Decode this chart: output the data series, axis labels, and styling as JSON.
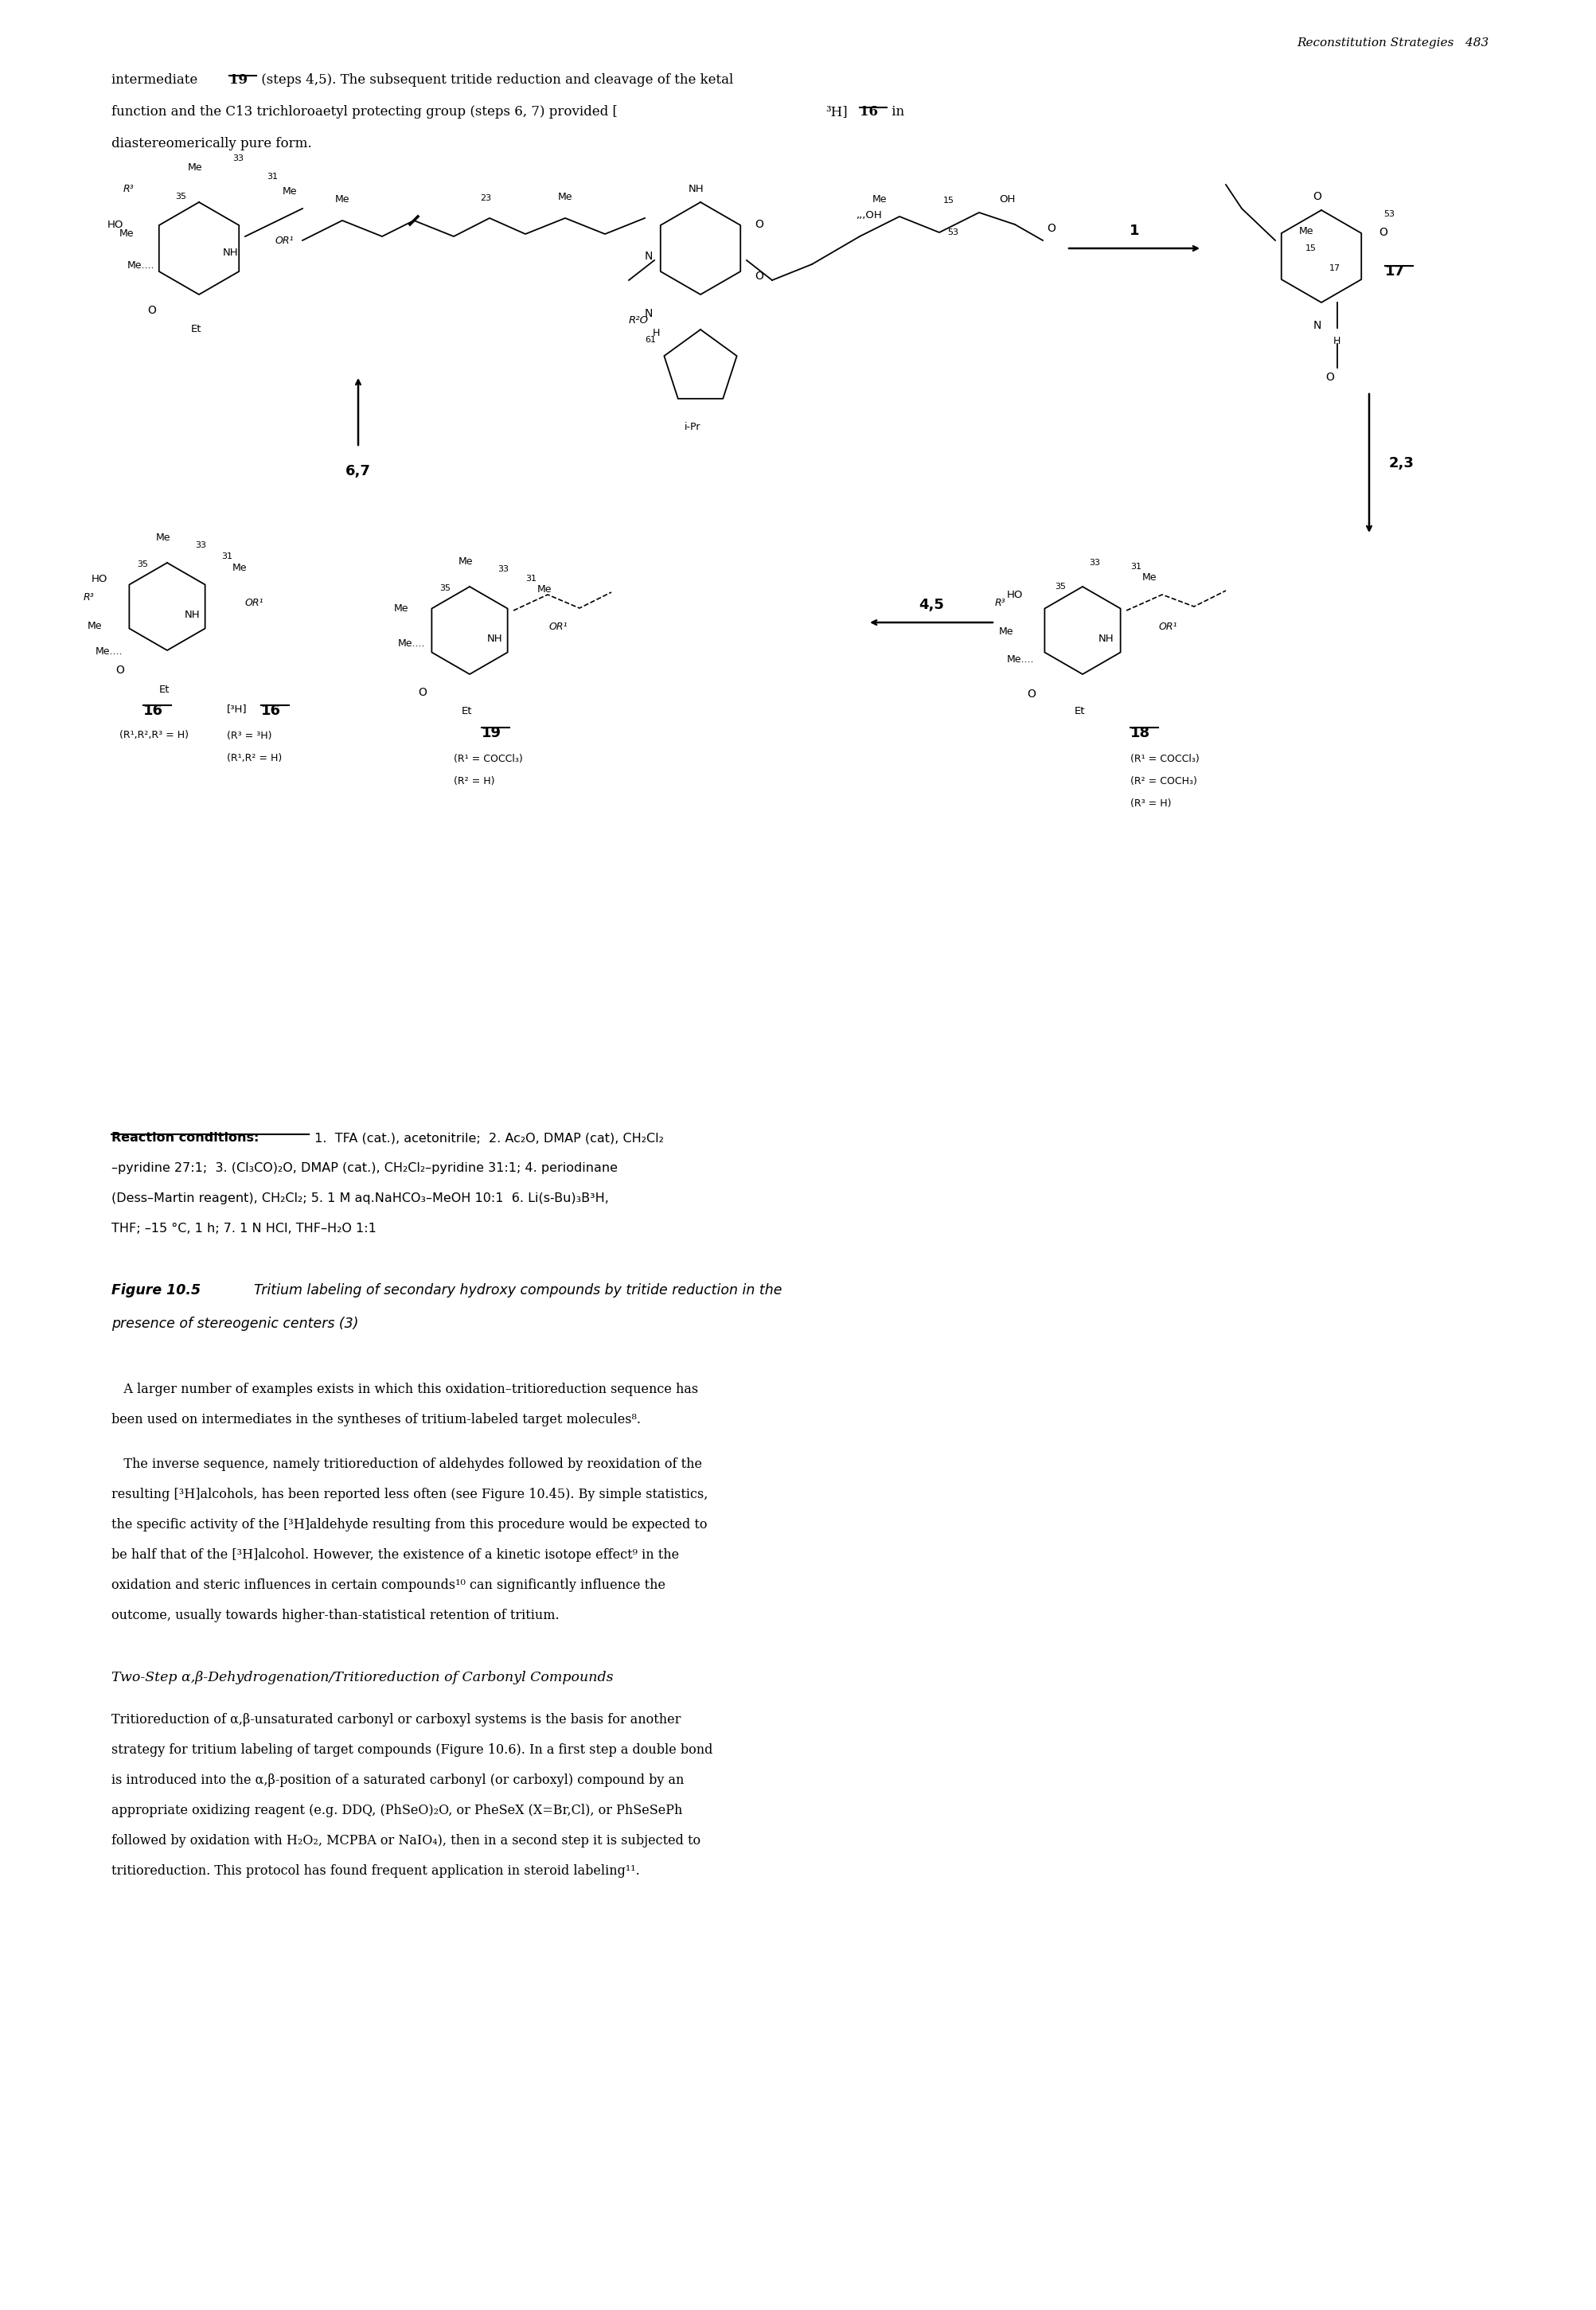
{
  "page_header": "Reconstitution Strategies   483",
  "intro_line1": "intermediate ",
  "intro_19": "19",
  "intro_line1b": " (steps 4,5). The subsequent tritide reduction and cleavage of the ketal",
  "intro_line2a": "function and the C13 trichloroaetyl protecting group (steps 6, 7) provided [",
  "intro_3H": "³H]",
  "intro_16": "16",
  "intro_line2b": " in",
  "intro_line3": "diastereomerically pure form.",
  "rc_bold": "Reaction conditions:",
  "rc_rest_line1": " 1.  TFA (cat.), acetonitrile;  2. Ac₂O, DMAP (cat), CH₂Cl₂",
  "rc_line2": "–pyridine 27:1;  3. (Cl₃CO)₂O, DMAP (cat.), CH₂Cl₂–pyridine 31:1; 4. periodinane",
  "rc_line3": "(Dess–Martin reagent), CH₂Cl₂; 5. 1 M aq.NaHCO₃–MeOH 10:1  6. Li(s-Bu)₃B³H,",
  "rc_line4": "THF; –15 °C, 1 h; 7. 1 N HCl, THF–H₂O 1:1",
  "fig_bold": "Figure 10.5",
  "fig_italic_line1": "  Tritium labeling of secondary hydroxy compounds by tritide reduction in the",
  "fig_italic_line2": "presence of stereogenic centers (3)",
  "body1_line1": "   A larger number of examples exists in which this oxidation–tritioreduction sequence has",
  "body1_line2": "been used on intermediates in the syntheses of tritium-labeled target molecules⁸.",
  "body2_line1": "   The inverse sequence, namely tritioreduction of aldehydes followed by reoxidation of the",
  "body2_line2": "resulting [³H]alcohols, has been reported less often (see Figure 10.45). By simple statistics,",
  "body2_line3": "the specific activity of the [³H]aldehyde resulting from this procedure would be expected to",
  "body2_line4": "be half that of the [³H]alcohol. However, the existence of a kinetic isotope effect⁹ in the",
  "body2_line5": "oxidation and steric influences in certain compounds¹⁰ can significantly influence the",
  "body2_line6": "outcome, usually towards higher-than-statistical retention of tritium.",
  "section_head": "Two-Step α,β-Dehydrogenation/Tritioreduction of Carbonyl Compounds",
  "body3_line1": "Tritioreduction of α,β-unsaturated carbonyl or carboxyl systems is the basis for another",
  "body3_line2": "strategy for tritium labeling of target compounds (Figure 10.6). In a first step a double bond",
  "body3_line3": "is introduced into the α,β-position of a saturated carbonyl (or carboxyl) compound by an",
  "body3_line4": "appropriate oxidizing reagent (e.g. DDQ, (PhSeO)₂O, or PheSeX (X=Br,Cl), or PhSeSePh",
  "body3_line5": "followed by oxidation with H₂O₂, MCPBA or NaIO₄), then in a second step it is subjected to",
  "body3_line6": "tritioreduction. This protocol has found frequent application in steroid labeling¹¹.",
  "bg_color": "#ffffff"
}
